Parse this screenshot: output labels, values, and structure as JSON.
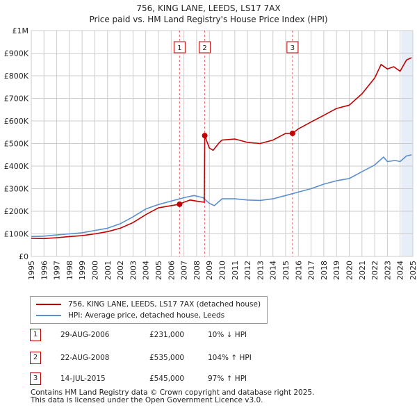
{
  "title": {
    "line1": "756, KING LANE, LEEDS, LS17 7AX",
    "line2": "Price paid vs. HM Land Registry's House Price Index (HPI)"
  },
  "colors": {
    "property": "#c00000",
    "hpi": "#5b8fd0",
    "shade": "#e8eef8",
    "grid": "#cccccc",
    "marker_line": "#e06060"
  },
  "chart_data": {
    "type": "line",
    "x_range": [
      1995,
      2025
    ],
    "ylim": [
      0,
      1000000
    ],
    "y_ticks": [
      {
        "value": 0,
        "label": "£0"
      },
      {
        "value": 100000,
        "label": "£100K"
      },
      {
        "value": 200000,
        "label": "£200K"
      },
      {
        "value": 300000,
        "label": "£300K"
      },
      {
        "value": 400000,
        "label": "£400K"
      },
      {
        "value": 500000,
        "label": "£500K"
      },
      {
        "value": 600000,
        "label": "£600K"
      },
      {
        "value": 700000,
        "label": "£700K"
      },
      {
        "value": 800000,
        "label": "£800K"
      },
      {
        "value": 900000,
        "label": "£900K"
      },
      {
        "value": 1000000,
        "label": "£1M"
      }
    ],
    "x_ticks": [
      "1995",
      "1996",
      "1997",
      "1998",
      "1999",
      "2000",
      "2001",
      "2002",
      "2003",
      "2004",
      "2005",
      "2006",
      "2007",
      "2008",
      "2009",
      "2010",
      "2011",
      "2012",
      "2013",
      "2014",
      "2015",
      "2016",
      "2017",
      "2018",
      "2019",
      "2020",
      "2021",
      "2022",
      "2023",
      "2024",
      "2025"
    ],
    "shaded_from": 2024.1,
    "series": [
      {
        "name": "756, KING LANE, LEEDS, LS17 7AX (detached house)",
        "color": "#c00000",
        "points": [
          [
            1995,
            80000
          ],
          [
            1996,
            79000
          ],
          [
            1997,
            83000
          ],
          [
            1998,
            88000
          ],
          [
            1999,
            92000
          ],
          [
            2000,
            100000
          ],
          [
            2001,
            110000
          ],
          [
            2002,
            125000
          ],
          [
            2003,
            150000
          ],
          [
            2004,
            185000
          ],
          [
            2005,
            215000
          ],
          [
            2006,
            225000
          ],
          [
            2006.66,
            231000
          ],
          [
            2007,
            240000
          ],
          [
            2007.5,
            250000
          ],
          [
            2008,
            245000
          ],
          [
            2008.6,
            240000
          ],
          [
            2008.64,
            535000
          ],
          [
            2009,
            480000
          ],
          [
            2009.3,
            470000
          ],
          [
            2009.8,
            505000
          ],
          [
            2010,
            515000
          ],
          [
            2011,
            520000
          ],
          [
            2012,
            505000
          ],
          [
            2013,
            500000
          ],
          [
            2014,
            515000
          ],
          [
            2015,
            545000
          ],
          [
            2015.54,
            545000
          ],
          [
            2016,
            565000
          ],
          [
            2017,
            595000
          ],
          [
            2018,
            625000
          ],
          [
            2019,
            655000
          ],
          [
            2020,
            670000
          ],
          [
            2021,
            720000
          ],
          [
            2022,
            790000
          ],
          [
            2022.5,
            850000
          ],
          [
            2023,
            830000
          ],
          [
            2023.5,
            840000
          ],
          [
            2024,
            820000
          ],
          [
            2024.5,
            870000
          ],
          [
            2024.9,
            880000
          ]
        ]
      },
      {
        "name": "HPI: Average price, detached house, Leeds",
        "color": "#5b8fd0",
        "points": [
          [
            1995,
            88000
          ],
          [
            1996,
            90000
          ],
          [
            1997,
            95000
          ],
          [
            1998,
            100000
          ],
          [
            1999,
            105000
          ],
          [
            2000,
            115000
          ],
          [
            2001,
            125000
          ],
          [
            2002,
            145000
          ],
          [
            2003,
            175000
          ],
          [
            2004,
            210000
          ],
          [
            2005,
            230000
          ],
          [
            2006,
            245000
          ],
          [
            2007,
            260000
          ],
          [
            2007.8,
            270000
          ],
          [
            2008.5,
            260000
          ],
          [
            2009,
            235000
          ],
          [
            2009.4,
            225000
          ],
          [
            2010,
            255000
          ],
          [
            2011,
            255000
          ],
          [
            2012,
            250000
          ],
          [
            2013,
            248000
          ],
          [
            2014,
            255000
          ],
          [
            2015,
            270000
          ],
          [
            2016,
            285000
          ],
          [
            2017,
            300000
          ],
          [
            2018,
            320000
          ],
          [
            2019,
            335000
          ],
          [
            2020,
            345000
          ],
          [
            2021,
            375000
          ],
          [
            2022,
            405000
          ],
          [
            2022.7,
            440000
          ],
          [
            2023,
            420000
          ],
          [
            2023.6,
            425000
          ],
          [
            2024,
            420000
          ],
          [
            2024.5,
            445000
          ],
          [
            2024.9,
            450000
          ]
        ]
      }
    ],
    "markers": [
      {
        "label": "1",
        "x": 2006.66,
        "y": 231000
      },
      {
        "label": "2",
        "x": 2008.64,
        "y": 535000
      },
      {
        "label": "3",
        "x": 2015.54,
        "y": 545000
      }
    ]
  },
  "legend": {
    "property": "756, KING LANE, LEEDS, LS17 7AX (detached house)",
    "hpi": "HPI: Average price, detached house, Leeds"
  },
  "transactions": [
    {
      "num": "1",
      "date": "29-AUG-2006",
      "price": "£231,000",
      "hpi": "10% ↓ HPI"
    },
    {
      "num": "2",
      "date": "22-AUG-2008",
      "price": "£535,000",
      "hpi": "104% ↑ HPI"
    },
    {
      "num": "3",
      "date": "14-JUL-2015",
      "price": "£545,000",
      "hpi": "97% ↑ HPI"
    }
  ],
  "footer": {
    "line1": "Contains HM Land Registry data © Crown copyright and database right 2025.",
    "line2": "This data is licensed under the Open Government Licence v3.0."
  }
}
